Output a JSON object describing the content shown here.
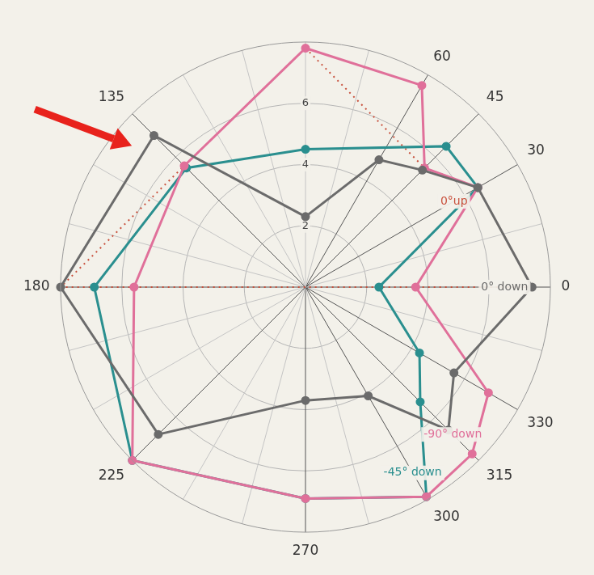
{
  "chart_data": {
    "type": "radar",
    "categories": [
      null,
      null,
      "60",
      "45",
      "30",
      null,
      "0",
      null,
      "330",
      "315",
      "300",
      null,
      "270",
      null,
      null,
      "225",
      null,
      null,
      "180",
      null,
      null,
      "135",
      null,
      null
    ],
    "ylim": [
      0,
      8
    ],
    "yticks": [
      2,
      4,
      6
    ],
    "grid": true,
    "series": [
      {
        "name": "0° down",
        "color": "#6b6b6b",
        "marker": "circle",
        "line_style": "solid",
        "values": [
          2.3,
          null,
          4.8,
          5.4,
          6.5,
          null,
          7.4,
          null,
          5.6,
          6.6,
          4.1,
          null,
          3.7,
          null,
          null,
          6.8,
          null,
          null,
          8.0,
          null,
          null,
          7.0,
          null,
          null
        ]
      },
      {
        "name": "-90° down",
        "color": "#e0709a",
        "marker": "circle",
        "line_style": "solid",
        "values": [
          7.8,
          null,
          7.6,
          5.5,
          6.5,
          null,
          3.6,
          null,
          6.9,
          7.7,
          7.9,
          null,
          6.9,
          null,
          null,
          8.0,
          null,
          null,
          5.6,
          null,
          null,
          5.6,
          null,
          null
        ]
      },
      {
        "name": "-45° down",
        "color": "#2a8f8f",
        "marker": "circle",
        "line_style": "solid",
        "values": [
          4.5,
          null,
          null,
          6.5,
          6.5,
          null,
          2.4,
          null,
          4.3,
          5.3,
          7.9,
          null,
          6.9,
          null,
          null,
          8.0,
          null,
          null,
          6.9,
          null,
          null,
          5.5,
          null,
          null
        ]
      },
      {
        "name": "0°up",
        "color": "#c8503c",
        "marker": "circle",
        "line_style": "dotted",
        "values": [
          7.8,
          null,
          null,
          5.5,
          6.5,
          null,
          7.4,
          null,
          null,
          null,
          null,
          null,
          null,
          null,
          null,
          null,
          null,
          null,
          8.0,
          null,
          null,
          5.6,
          null,
          null
        ]
      }
    ]
  }
}
